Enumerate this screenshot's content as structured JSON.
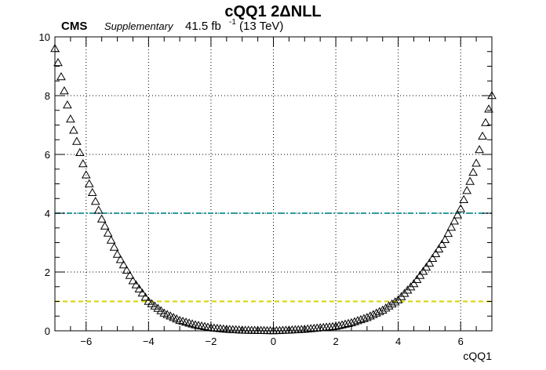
{
  "header": {
    "title": "cQQ1 2ΔNLL",
    "experiment": "CMS",
    "tag": "Supplementary",
    "lumi_value": "41.5 fb",
    "lumi_exponent": "-1",
    "energy": "(13 TeV)"
  },
  "chart_data": {
    "type": "scatter",
    "marker": "open-triangle",
    "xlabel": "cQQ1",
    "ylabel": "",
    "xlim": [
      -7,
      7
    ],
    "ylim": [
      0,
      10
    ],
    "xticks": [
      -6,
      -4,
      -2,
      0,
      2,
      4,
      6
    ],
    "yticks": [
      0,
      2,
      4,
      6,
      8,
      10
    ],
    "grid": true,
    "x_start": -7,
    "x_stop": 7,
    "n_points": 141,
    "reference_lines": [
      {
        "y": 4,
        "color": "#2a9d9f",
        "style": "dash-dot"
      },
      {
        "y": 1,
        "color": "#d4d400",
        "style": "dashed"
      }
    ],
    "points_sampled": [
      {
        "x": -7.0,
        "y": 9.6
      },
      {
        "x": -6.5,
        "y": 7.2
      },
      {
        "x": -6.0,
        "y": 5.3
      },
      {
        "x": -5.5,
        "y": 3.8
      },
      {
        "x": -5.0,
        "y": 2.6
      },
      {
        "x": -4.5,
        "y": 1.7
      },
      {
        "x": -4.0,
        "y": 1.0
      },
      {
        "x": -3.5,
        "y": 0.6
      },
      {
        "x": -3.0,
        "y": 0.35
      },
      {
        "x": -2.5,
        "y": 0.2
      },
      {
        "x": -2.0,
        "y": 0.1
      },
      {
        "x": -1.5,
        "y": 0.05
      },
      {
        "x": -1.0,
        "y": 0.02
      },
      {
        "x": -0.5,
        "y": 0.01
      },
      {
        "x": 0.0,
        "y": 0.0
      },
      {
        "x": 0.5,
        "y": 0.02
      },
      {
        "x": 1.0,
        "y": 0.05
      },
      {
        "x": 1.5,
        "y": 0.1
      },
      {
        "x": 2.0,
        "y": 0.15
      },
      {
        "x": 2.5,
        "y": 0.27
      },
      {
        "x": 3.0,
        "y": 0.45
      },
      {
        "x": 3.5,
        "y": 0.7
      },
      {
        "x": 4.0,
        "y": 1.05
      },
      {
        "x": 4.5,
        "y": 1.6
      },
      {
        "x": 5.0,
        "y": 2.3
      },
      {
        "x": 5.5,
        "y": 3.1
      },
      {
        "x": 6.0,
        "y": 4.15
      },
      {
        "x": 6.5,
        "y": 5.7
      },
      {
        "x": 7.0,
        "y": 8.0
      }
    ]
  }
}
